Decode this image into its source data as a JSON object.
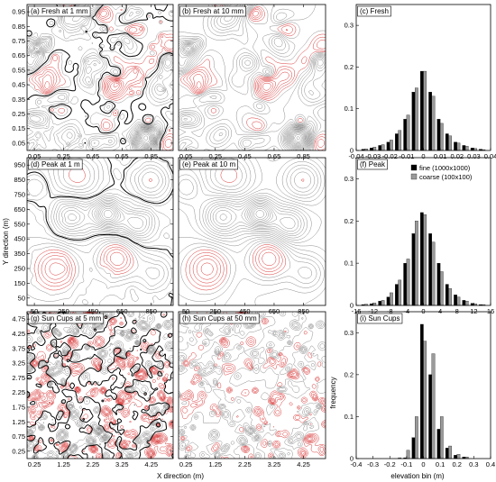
{
  "axis_labels": {
    "y_direction": "Y direction (m)",
    "x_direction": "X direction (m)",
    "frequency": "frequency",
    "elevation_bin": "elevation bin (m)"
  },
  "legend": {
    "fine": "fine (1000x1000)",
    "coarse": "coarse (100x100)"
  },
  "colors": {
    "fine": "#000000",
    "coarse": "#9a9a9a",
    "contour_dark": "#000000",
    "contour_grey": "#7f7f7f",
    "contour_red": "#d42020"
  },
  "chart_data": [
    {
      "type": "heatmap",
      "id": "a",
      "title": "(a) Fresh at 1 mm",
      "xticks": [
        "0.05",
        "0.25",
        "0.45",
        "0.65",
        "0.85"
      ],
      "yticks": [
        "0.05",
        "0.15",
        "0.25",
        "0.35",
        "0.45",
        "0.55",
        "0.65",
        "0.75",
        "0.85",
        "0.95"
      ],
      "xlim": [
        0,
        1
      ],
      "ylim": [
        0,
        1
      ]
    },
    {
      "type": "heatmap",
      "id": "b",
      "title": "(b) Fresh at 10 mm",
      "xticks": [
        "0.05",
        "0.25",
        "0.45",
        "0.65",
        "0.85"
      ],
      "xlim": [
        0,
        1
      ],
      "ylim": [
        0,
        1
      ]
    },
    {
      "type": "bar",
      "id": "c",
      "title": "(c) Fresh",
      "categories": [
        -0.035,
        -0.03,
        -0.025,
        -0.02,
        -0.015,
        -0.01,
        -0.005,
        0,
        0.005,
        0.01,
        0.015,
        0.02,
        0.025,
        0.03,
        0.035
      ],
      "xticks": [
        "-0.04",
        "-0.03",
        "-0.02",
        "-0.01",
        "0",
        "0.01",
        "0.02",
        "0.03",
        "0.04"
      ],
      "yticks": [
        "0",
        "0.1",
        "0.2",
        "0.3"
      ],
      "xlim": [
        -0.04,
        0.04
      ],
      "ylim": [
        0,
        0.35
      ],
      "series": [
        {
          "name": "fine (1000x1000)",
          "values": [
            0.003,
            0.006,
            0.012,
            0.02,
            0.04,
            0.075,
            0.14,
            0.19,
            0.14,
            0.075,
            0.04,
            0.02,
            0.012,
            0.006,
            0.003
          ]
        },
        {
          "name": "coarse (100x100)",
          "values": [
            0.004,
            0.008,
            0.014,
            0.025,
            0.048,
            0.085,
            0.15,
            0.19,
            0.13,
            0.065,
            0.035,
            0.018,
            0.01,
            0.005,
            0.002
          ]
        }
      ]
    },
    {
      "type": "heatmap",
      "id": "d",
      "title": "(d) Peak at 1 m",
      "xticks": [
        "50",
        "250",
        "450",
        "650",
        "850"
      ],
      "yticks": [
        "50",
        "150",
        "250",
        "350",
        "450",
        "550",
        "650",
        "750",
        "850",
        "950"
      ],
      "xlim": [
        0,
        1000
      ],
      "ylim": [
        0,
        1000
      ]
    },
    {
      "type": "heatmap",
      "id": "e",
      "title": "(e) Peak at 10 m",
      "xticks": [
        "50",
        "250",
        "450",
        "650",
        "850"
      ],
      "xlim": [
        0,
        1000
      ],
      "ylim": [
        0,
        1000
      ]
    },
    {
      "type": "bar",
      "id": "f",
      "title": "(f) Peak",
      "categories": [
        -14,
        -12,
        -10,
        -8,
        -6,
        -4,
        -2,
        0,
        2,
        4,
        6,
        8,
        10,
        12,
        14
      ],
      "xticks": [
        "-16",
        "-12",
        "-8",
        "-4",
        "0",
        "4",
        "8",
        "12",
        "16"
      ],
      "yticks": [
        "0",
        "0.1",
        "0.2",
        "0.3"
      ],
      "xlim": [
        -16,
        16
      ],
      "ylim": [
        0,
        0.35
      ],
      "series": [
        {
          "name": "fine (1000x1000)",
          "values": [
            0.002,
            0.004,
            0.01,
            0.02,
            0.05,
            0.1,
            0.17,
            0.22,
            0.17,
            0.1,
            0.05,
            0.025,
            0.012,
            0.005,
            0.002
          ]
        },
        {
          "name": "coarse (100x100)",
          "values": [
            0.003,
            0.006,
            0.012,
            0.03,
            0.06,
            0.11,
            0.2,
            0.215,
            0.15,
            0.08,
            0.04,
            0.02,
            0.01,
            0.004,
            0.002
          ]
        }
      ]
    },
    {
      "type": "heatmap",
      "id": "g",
      "title": "(g) Sun Cups at 5 mm",
      "xticks": [
        "0.25",
        "1.25",
        "2.25",
        "3.25",
        "4.25"
      ],
      "yticks": [
        "0.25",
        "0.75",
        "1.25",
        "1.75",
        "2.25",
        "2.75",
        "3.25",
        "3.75",
        "4.25",
        "4.75"
      ],
      "xlim": [
        0,
        5
      ],
      "ylim": [
        0,
        5
      ]
    },
    {
      "type": "heatmap",
      "id": "h",
      "title": "(h) Sun Cups at 50 mm",
      "xticks": [
        "0.25",
        "1.25",
        "2.25",
        "3.25",
        "4.25"
      ],
      "xlim": [
        0,
        5
      ],
      "ylim": [
        0,
        5
      ]
    },
    {
      "type": "bar",
      "id": "i",
      "title": "(i) Sun Cups",
      "categories": [
        -0.15,
        -0.1,
        -0.05,
        0,
        0.05,
        0.1,
        0.15,
        0.2,
        0.25
      ],
      "xticks": [
        "-0.4",
        "-0.3",
        "-0.2",
        "-0.1",
        "0",
        "0.1",
        "0.2",
        "0.3",
        "0.4"
      ],
      "yticks": [
        "0",
        "0.1",
        "0.2",
        "0.3"
      ],
      "xlim": [
        -0.4,
        0.4
      ],
      "ylim": [
        0,
        0.35
      ],
      "series": [
        {
          "name": "fine (1000x1000)",
          "values": [
            0.0,
            0.002,
            0.05,
            0.32,
            0.2,
            0.07,
            0.025,
            0.008,
            0.004
          ]
        },
        {
          "name": "coarse (100x100)",
          "values": [
            0.002,
            0.02,
            0.1,
            0.28,
            0.25,
            0.1,
            0.03,
            0.01,
            0.004
          ]
        }
      ]
    }
  ]
}
